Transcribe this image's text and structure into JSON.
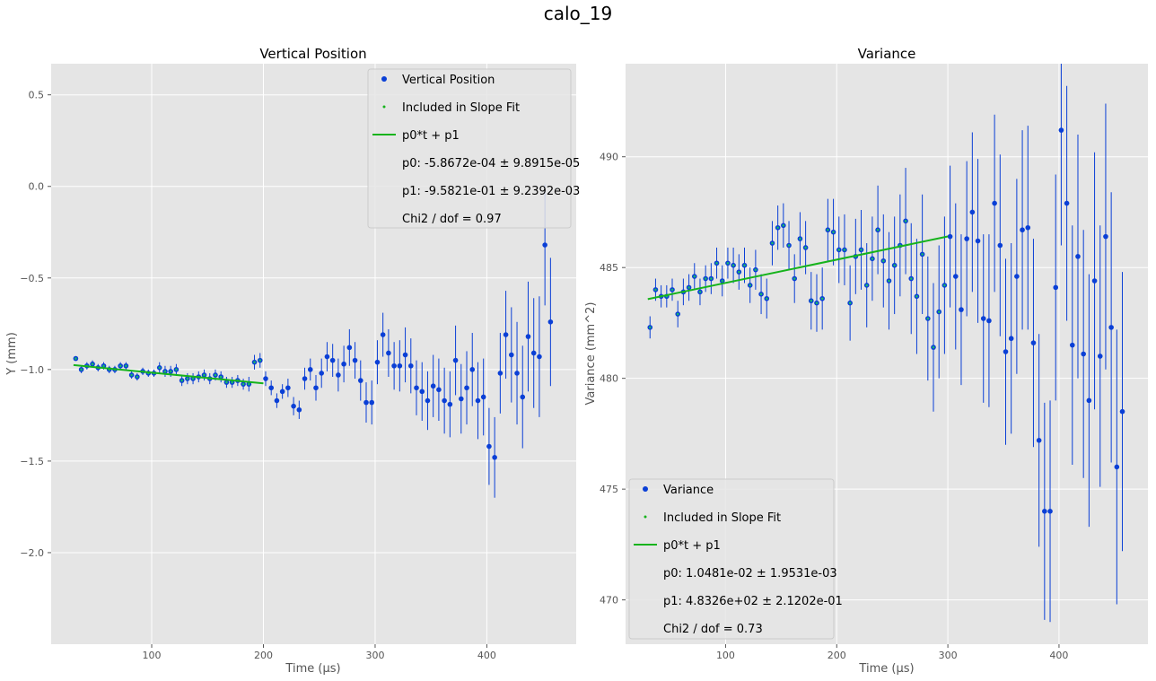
{
  "figure_title": "calo_19",
  "colors": {
    "panel_bg": "#e5e5e5",
    "grid": "#ffffff",
    "data_marker": "#0a3fd6",
    "included_marker": "#17b86b",
    "fit_line": "#16b31c",
    "errorbar": "#0a3fd6"
  },
  "chart_data": [
    {
      "type": "scatter",
      "title": "Vertical Position",
      "xlabel": "Time (µs)",
      "ylabel": "Y (mm)",
      "xlim": [
        10,
        480
      ],
      "ylim": [
        -2.5,
        0.67
      ],
      "xticks": [
        100,
        200,
        300,
        400
      ],
      "yticks": [
        0.5,
        0.0,
        -0.5,
        -1.0,
        -1.5,
        -2.0
      ],
      "ytick_labels": [
        "0.5",
        "0.0",
        "−0.5",
        "−1.0",
        "−1.5",
        "−2.0"
      ],
      "grid": true,
      "legend_position": "upper right",
      "legend": [
        {
          "kind": "marker",
          "label": "Vertical Position"
        },
        {
          "kind": "small-marker",
          "label": "Included in Slope Fit"
        },
        {
          "kind": "line",
          "label": "p0*t + p1"
        },
        {
          "kind": "text",
          "label": "p0: -5.8672e-04 ± 9.8915e-05"
        },
        {
          "kind": "text",
          "label": "p1: -9.5821e-01 ± 9.2392e-03"
        },
        {
          "kind": "text",
          "label": "Chi2 / dof = 0.97"
        }
      ],
      "fit": {
        "x": [
          30,
          200
        ],
        "p0": -0.00058672,
        "p1": -0.95821
      },
      "fit_range": [
        30,
        200
      ],
      "points": {
        "x": [
          32,
          37,
          42,
          47,
          52,
          57,
          62,
          67,
          72,
          77,
          82,
          87,
          92,
          97,
          102,
          107,
          112,
          117,
          122,
          127,
          132,
          137,
          142,
          147,
          152,
          157,
          162,
          167,
          172,
          177,
          182,
          187,
          192,
          197,
          202,
          207,
          212,
          217,
          222,
          227,
          232,
          237,
          242,
          247,
          252,
          257,
          262,
          267,
          272,
          277,
          282,
          287,
          292,
          297,
          302,
          307,
          312,
          317,
          322,
          327,
          332,
          337,
          342,
          347,
          352,
          357,
          362,
          367,
          372,
          377,
          382,
          387,
          392,
          397,
          402,
          407,
          412,
          417,
          422,
          427,
          432,
          437,
          442,
          447,
          452,
          457
        ],
        "y": [
          -0.94,
          -1.0,
          -0.98,
          -0.97,
          -0.99,
          -0.98,
          -1.0,
          -1.0,
          -0.98,
          -0.98,
          -1.03,
          -1.04,
          -1.01,
          -1.02,
          -1.02,
          -0.99,
          -1.01,
          -1.01,
          -1.0,
          -1.06,
          -1.05,
          -1.05,
          -1.04,
          -1.03,
          -1.05,
          -1.03,
          -1.04,
          -1.07,
          -1.07,
          -1.06,
          -1.08,
          -1.08,
          -0.96,
          -0.95,
          -1.05,
          -1.1,
          -1.17,
          -1.12,
          -1.1,
          -1.2,
          -1.22,
          -1.05,
          -1.0,
          -1.1,
          -1.02,
          -0.93,
          -0.95,
          -1.03,
          -0.97,
          -0.88,
          -0.95,
          -1.06,
          -1.18,
          -1.18,
          -0.96,
          -0.81,
          -0.91,
          -0.98,
          -0.98,
          -0.92,
          -0.98,
          -1.1,
          -1.12,
          -1.17,
          -1.09,
          -1.11,
          -1.17,
          -1.19,
          -0.95,
          -1.16,
          -1.1,
          -1.0,
          -1.17,
          -1.15,
          -1.42,
          -1.48,
          -1.02,
          -0.81,
          -0.92,
          -1.02,
          -1.15,
          -0.82,
          -0.91,
          -0.93,
          -0.32,
          -0.74
        ],
        "err": [
          0.01,
          0.02,
          0.02,
          0.02,
          0.02,
          0.02,
          0.02,
          0.02,
          0.02,
          0.02,
          0.02,
          0.02,
          0.02,
          0.02,
          0.02,
          0.03,
          0.03,
          0.03,
          0.03,
          0.03,
          0.03,
          0.03,
          0.03,
          0.03,
          0.03,
          0.03,
          0.03,
          0.03,
          0.03,
          0.03,
          0.03,
          0.04,
          0.04,
          0.04,
          0.04,
          0.04,
          0.04,
          0.04,
          0.05,
          0.05,
          0.05,
          0.06,
          0.06,
          0.07,
          0.08,
          0.08,
          0.09,
          0.09,
          0.1,
          0.1,
          0.1,
          0.11,
          0.11,
          0.12,
          0.12,
          0.12,
          0.13,
          0.13,
          0.14,
          0.15,
          0.15,
          0.15,
          0.16,
          0.16,
          0.17,
          0.17,
          0.18,
          0.18,
          0.19,
          0.19,
          0.2,
          0.2,
          0.21,
          0.21,
          0.21,
          0.22,
          0.22,
          0.24,
          0.26,
          0.28,
          0.28,
          0.3,
          0.3,
          0.33,
          0.33,
          0.35
        ]
      }
    },
    {
      "type": "scatter",
      "title": "Variance",
      "xlabel": "Time (µs)",
      "ylabel": "Variance (mm^2)",
      "xlim": [
        10,
        480
      ],
      "ylim": [
        468,
        494.2
      ],
      "xticks": [
        100,
        200,
        300,
        400
      ],
      "yticks": [
        490,
        485,
        480,
        475,
        470
      ],
      "ytick_labels": [
        "490",
        "485",
        "480",
        "475",
        "470"
      ],
      "grid": true,
      "legend_position": "lower left",
      "legend": [
        {
          "kind": "marker",
          "label": "Variance"
        },
        {
          "kind": "small-marker",
          "label": "Included in Slope Fit"
        },
        {
          "kind": "line",
          "label": "p0*t + p1"
        },
        {
          "kind": "text",
          "label": "p0: 1.0481e-02 ± 1.9531e-03"
        },
        {
          "kind": "text",
          "label": "p1: 4.8326e+02 ± 2.1202e-01"
        },
        {
          "kind": "text",
          "label": "Chi2 / dof = 0.73"
        }
      ],
      "fit": {
        "x": [
          30,
          300
        ],
        "p0": 0.010481,
        "p1": 483.26
      },
      "fit_range": [
        30,
        300
      ],
      "points": {
        "x": [
          32,
          37,
          42,
          47,
          52,
          57,
          62,
          67,
          72,
          77,
          82,
          87,
          92,
          97,
          102,
          107,
          112,
          117,
          122,
          127,
          132,
          137,
          142,
          147,
          152,
          157,
          162,
          167,
          172,
          177,
          182,
          187,
          192,
          197,
          202,
          207,
          212,
          217,
          222,
          227,
          232,
          237,
          242,
          247,
          252,
          257,
          262,
          267,
          272,
          277,
          282,
          287,
          292,
          297,
          302,
          307,
          312,
          317,
          322,
          327,
          332,
          337,
          342,
          347,
          352,
          357,
          362,
          367,
          372,
          377,
          382,
          387,
          392,
          397,
          402,
          407,
          412,
          417,
          422,
          427,
          432,
          437,
          442,
          447,
          452,
          457
        ],
        "y": [
          482.3,
          484.0,
          483.7,
          483.7,
          484.0,
          482.9,
          483.9,
          484.1,
          484.6,
          483.9,
          484.5,
          484.5,
          485.2,
          484.4,
          485.2,
          485.1,
          484.8,
          485.1,
          484.2,
          484.9,
          483.8,
          483.6,
          486.1,
          486.8,
          486.9,
          486.0,
          484.5,
          486.3,
          485.9,
          483.5,
          483.4,
          483.6,
          486.7,
          486.6,
          485.8,
          485.8,
          483.4,
          485.5,
          485.8,
          484.2,
          485.4,
          486.7,
          485.3,
          484.4,
          485.1,
          486.0,
          487.1,
          484.5,
          483.7,
          485.6,
          482.7,
          481.4,
          483.0,
          484.2,
          486.4,
          484.6,
          483.1,
          486.3,
          487.5,
          486.2,
          482.7,
          482.6,
          487.9,
          486.0,
          481.2,
          481.8,
          484.6,
          486.7,
          486.8,
          481.6,
          477.2,
          474.0,
          474.0,
          484.1,
          491.2,
          487.9,
          481.5,
          485.5,
          481.1,
          479.0,
          484.4,
          481.0,
          486.4,
          482.3,
          476.0,
          478.5
        ],
        "err": [
          0.5,
          0.5,
          0.5,
          0.5,
          0.5,
          0.6,
          0.6,
          0.6,
          0.6,
          0.6,
          0.6,
          0.7,
          0.7,
          0.7,
          0.7,
          0.8,
          0.8,
          0.8,
          0.8,
          0.9,
          0.9,
          0.9,
          1.0,
          1.0,
          1.0,
          1.1,
          1.1,
          1.2,
          1.2,
          1.3,
          1.3,
          1.4,
          1.4,
          1.5,
          1.5,
          1.6,
          1.7,
          1.7,
          1.8,
          1.9,
          1.9,
          2.0,
          2.1,
          2.2,
          2.2,
          2.3,
          2.4,
          2.5,
          2.6,
          2.7,
          2.8,
          2.9,
          3.0,
          3.1,
          3.2,
          3.3,
          3.4,
          3.5,
          3.6,
          3.7,
          3.8,
          3.9,
          4.0,
          4.1,
          4.2,
          4.3,
          4.4,
          4.5,
          4.6,
          4.7,
          4.8,
          4.9,
          5.0,
          5.1,
          5.2,
          5.3,
          5.4,
          5.5,
          5.6,
          5.7,
          5.8,
          5.9,
          6.0,
          6.1,
          6.2,
          6.3
        ]
      }
    }
  ]
}
